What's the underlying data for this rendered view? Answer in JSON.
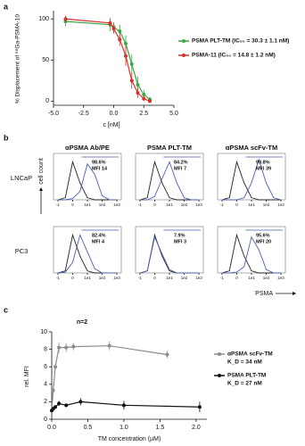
{
  "chart_data": [
    {
      "type": "line",
      "panel": "a",
      "ylabel": "% Displacement of ⁶⁸Ga-PSMA-10",
      "xlabel": "c [nM]",
      "x": [
        -4,
        -0.3,
        0,
        0.5,
        1,
        1.5,
        2,
        2.5,
        3
      ],
      "xlim": [
        -5,
        5
      ],
      "xticks": [
        {
          "value": -5,
          "label": "-5.0"
        },
        {
          "value": -2.5,
          "label": "-2.5"
        },
        {
          "value": 0,
          "label": "0.0"
        },
        {
          "value": 2.5,
          "label": "2.5"
        },
        {
          "value": 5,
          "label": "5.0"
        }
      ],
      "ylim": [
        -5,
        110
      ],
      "yticks": [
        0,
        50,
        100
      ],
      "series": [
        {
          "name": "PSMA PLT-TM (IC₅₀ = 30.3 ± 1.1 nM)",
          "color": "#3aa843",
          "values": [
            97,
            93,
            90,
            85,
            70,
            45,
            20,
            8,
            2
          ],
          "errors": [
            6,
            8,
            6,
            8,
            10,
            12,
            10,
            6,
            3
          ]
        },
        {
          "name": "PSMA-11 (IC₅₀ = 14.8 ± 1.2 nM)",
          "color": "#d9302c",
          "values": [
            100,
            95,
            88,
            75,
            55,
            25,
            10,
            3,
            0
          ],
          "errors": [
            4,
            5,
            6,
            8,
            12,
            10,
            6,
            3,
            2
          ]
        }
      ]
    },
    {
      "type": "histogram-grid",
      "panel": "b",
      "ylabel": "cell count",
      "xlabel": "PSMA",
      "columns": [
        "αPSMA Ab/PE",
        "PSMA PLT-TM",
        "αPSMA scFv-TM"
      ],
      "rows": [
        "LNCaP",
        "PC3"
      ],
      "x": [
        -1,
        -0.5,
        0,
        0.5,
        1,
        1.5,
        2,
        2.5,
        3
      ],
      "xlim": [
        -1.3,
        3.3
      ],
      "xticks": [
        -1,
        0,
        {
          "value": 1,
          "label": "1e1"
        },
        {
          "value": 2,
          "label": "1e2"
        },
        {
          "value": 3,
          "label": "1e3"
        }
      ],
      "ylim": [
        0,
        110
      ],
      "panels": [
        {
          "annotations": [
            "98.6%",
            "MFI 14"
          ],
          "series": [
            {
              "color": "#222222",
              "values": [
                0,
                5,
                90,
                40,
                5,
                0,
                0,
                0,
                0
              ]
            },
            {
              "color": "#4a5fb0",
              "values": [
                0,
                0,
                3,
                20,
                85,
                60,
                10,
                0,
                0
              ]
            }
          ]
        },
        {
          "annotations": [
            "84.2%",
            "MFI 7"
          ],
          "series": [
            {
              "color": "#222222",
              "values": [
                0,
                5,
                90,
                40,
                5,
                0,
                0,
                0,
                0
              ]
            },
            {
              "color": "#4a5fb0",
              "values": [
                0,
                0,
                8,
                50,
                90,
                40,
                5,
                0,
                0
              ]
            }
          ]
        },
        {
          "annotations": [
            "99.8%",
            "MFI 39"
          ],
          "series": [
            {
              "color": "#222222",
              "values": [
                0,
                5,
                90,
                40,
                5,
                0,
                0,
                0,
                0
              ]
            },
            {
              "color": "#4a5fb0",
              "values": [
                0,
                0,
                0,
                5,
                40,
                95,
                40,
                5,
                0
              ]
            }
          ]
        },
        {
          "annotations": [
            "82.4%",
            "MFI 4"
          ],
          "series": [
            {
              "color": "#222222",
              "values": [
                0,
                5,
                90,
                40,
                5,
                0,
                0,
                0,
                0
              ]
            },
            {
              "color": "#4a5fb0",
              "values": [
                0,
                2,
                25,
                90,
                50,
                10,
                0,
                0,
                0
              ]
            }
          ]
        },
        {
          "annotations": [
            "7.9%",
            "MFI 3"
          ],
          "series": [
            {
              "color": "#222222",
              "values": [
                0,
                5,
                90,
                40,
                5,
                0,
                0,
                0,
                0
              ]
            },
            {
              "color": "#4a5fb0",
              "values": [
                0,
                5,
                85,
                45,
                8,
                0,
                0,
                0,
                0
              ]
            }
          ]
        },
        {
          "annotations": [
            "95.6%",
            "MFI 20"
          ],
          "series": [
            {
              "color": "#222222",
              "values": [
                0,
                5,
                90,
                40,
                5,
                0,
                0,
                0,
                0
              ]
            },
            {
              "color": "#4a5fb0",
              "values": [
                0,
                0,
                2,
                15,
                85,
                55,
                8,
                0,
                0
              ]
            }
          ]
        }
      ]
    },
    {
      "type": "line",
      "panel": "c",
      "title": "n=2",
      "ylabel": "rel. MFI",
      "xlabel": "TM concentration (µM)",
      "xlim": [
        0,
        2.15
      ],
      "xticks": [
        {
          "value": 0,
          "label": "0.0"
        },
        {
          "value": 0.5,
          "label": "0.5"
        },
        {
          "value": 1,
          "label": "1.0"
        },
        {
          "value": 1.5,
          "label": "1.5"
        },
        {
          "value": 2,
          "label": "2.0"
        }
      ],
      "ylim": [
        0,
        10
      ],
      "yticks": [
        0,
        2,
        4,
        6,
        8,
        10
      ],
      "series": [
        {
          "name": "αPSMA scFv-TM",
          "subtitle": "K_D = 34 nM",
          "color": "#8c8c8c",
          "x": [
            0,
            0.02,
            0.05,
            0.1,
            0.2,
            0.3,
            0.8,
            1.6
          ],
          "values": [
            1,
            3.3,
            6,
            8.2,
            8.2,
            8.3,
            8.4,
            7.4
          ],
          "errors": [
            0.1,
            0.2,
            0.3,
            0.6,
            0.5,
            0.4,
            0.5,
            0.4
          ]
        },
        {
          "name": "PSMA PLT-TM",
          "subtitle": "K_D = 27 nM",
          "color": "#111111",
          "x": [
            0,
            0.02,
            0.05,
            0.1,
            0.2,
            0.4,
            1.0,
            2.05
          ],
          "values": [
            1,
            1.2,
            1.4,
            1.8,
            1.6,
            2.0,
            1.6,
            1.4
          ],
          "errors": [
            0.1,
            0.2,
            0.2,
            0.3,
            0.2,
            0.4,
            0.5,
            0.6
          ]
        }
      ]
    }
  ]
}
